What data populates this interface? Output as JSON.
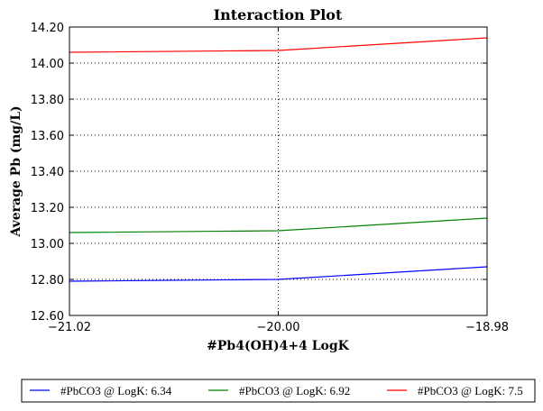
{
  "chart_data": {
    "type": "line",
    "title": "Interaction Plot",
    "xlabel": "#Pb4(OH)4+4 LogK",
    "ylabel": "Average Pb (mg/L)",
    "x": [
      -21.02,
      -20.0,
      -18.98
    ],
    "x_tick_labels": [
      "−21.02",
      "−20.00",
      "−18.98"
    ],
    "xlim": [
      -21.02,
      -18.98
    ],
    "ylim": [
      12.6,
      14.2
    ],
    "y_ticks": [
      12.6,
      12.8,
      13.0,
      13.2,
      13.4,
      13.6,
      13.8,
      14.0,
      14.2
    ],
    "y_tick_labels": [
      "12.60",
      "12.80",
      "13.00",
      "13.20",
      "13.40",
      "13.60",
      "13.80",
      "14.00",
      "14.20"
    ],
    "grid": "dotted, both axes",
    "legend_position": "bottom, below plot",
    "series": [
      {
        "name": "#PbCO3 @ LogK: 6.34",
        "color": "#0000ff",
        "values": [
          12.79,
          12.8,
          12.87
        ]
      },
      {
        "name": "#PbCO3 @ LogK: 6.92",
        "color": "#008000",
        "values": [
          13.06,
          13.07,
          13.14
        ]
      },
      {
        "name": "#PbCO3 @ LogK: 7.5",
        "color": "#ff0000",
        "values": [
          14.06,
          14.07,
          14.14
        ]
      }
    ]
  }
}
